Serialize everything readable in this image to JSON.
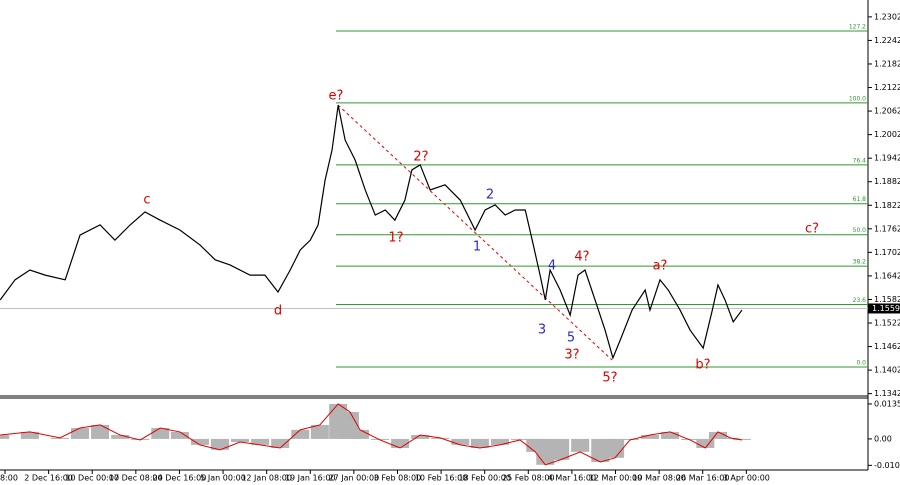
{
  "chart_data": [
    {
      "type": "line",
      "x": [
        -0.11,
        0.23,
        0.57,
        0.92,
        1.38,
        1.72,
        2.18,
        2.52,
        2.87,
        3.21,
        3.56,
        4.01,
        4.47,
        4.82,
        5.16,
        5.62,
        5.96,
        6.26,
        6.54,
        6.77,
        7.0,
        7.18,
        7.34,
        7.5,
        7.64,
        7.8,
        8.03,
        8.26,
        8.49,
        8.72,
        8.94,
        9.17,
        9.33,
        9.52,
        9.75,
        10.09,
        10.44,
        10.78,
        11.01,
        11.24,
        11.47,
        11.7,
        11.93,
        12.09,
        12.27,
        12.39,
        12.5,
        12.73,
        12.96,
        13.14,
        13.3,
        13.53,
        13.76,
        13.94,
        14.11,
        14.38,
        14.68,
        14.79,
        15.02,
        15.21,
        15.48,
        15.71,
        16.01,
        16.22,
        16.35,
        16.51,
        16.7,
        16.9
      ],
      "series": [
        {
          "color": "#000000",
          "values": [
            1.1581,
            1.1632,
            1.1657,
            1.1644,
            1.1632,
            1.1746,
            1.1772,
            1.1733,
            1.1772,
            1.1805,
            1.1784,
            1.1759,
            1.1721,
            1.1683,
            1.167,
            1.1644,
            1.1644,
            1.1601,
            1.1657,
            1.1708,
            1.1733,
            1.1772,
            1.1886,
            1.1963,
            1.2077,
            1.1988,
            1.1937,
            1.1861,
            1.1797,
            1.181,
            1.1784,
            1.1835,
            1.1912,
            1.1925,
            1.1861,
            1.1874,
            1.1835,
            1.1759,
            1.181,
            1.1823,
            1.1797,
            1.181,
            1.181,
            1.1733,
            1.1644,
            1.1581,
            1.1657,
            1.1606,
            1.1542,
            1.1644,
            1.1657,
            1.1581,
            1.1504,
            1.1433,
            1.1479,
            1.1555,
            1.1606,
            1.1555,
            1.1632,
            1.1606,
            1.1555,
            1.1504,
            1.1458,
            1.1555,
            1.1619,
            1.1581,
            1.1525,
            1.1555
          ]
        }
      ],
      "xlim": [
        -0.115,
        19.79
      ],
      "xticks": [
        {
          "value": 0,
          "label": "8:00"
        },
        {
          "value": 1,
          "label": "2 Dec 16:00"
        },
        {
          "value": 2,
          "label": "10 Dec 00:00"
        },
        {
          "value": 3,
          "label": "17 Dec 08:00"
        },
        {
          "value": 4,
          "label": "24 Dec 16:00"
        },
        {
          "value": 5,
          "label": "5 Jan 00:00"
        },
        {
          "value": 6,
          "label": "12 Jan 08:00"
        },
        {
          "value": 7,
          "label": "19 Jan 16:00"
        },
        {
          "value": 8,
          "label": "27 Jan 00:00"
        },
        {
          "value": 9,
          "label": "3 Feb 08:00"
        },
        {
          "value": 10,
          "label": "10 Feb 16:00"
        },
        {
          "value": 11,
          "label": "18 Feb 00:00"
        },
        {
          "value": 12,
          "label": "25 Feb 08:00"
        },
        {
          "value": 13,
          "label": "4 Mar 16:00"
        },
        {
          "value": 14,
          "label": "12 Mar 00:00"
        },
        {
          "value": 15,
          "label": "19 Mar 08:00"
        },
        {
          "value": 16,
          "label": "26 Mar 16:00"
        },
        {
          "value": 17,
          "label": "3 Apr 00:00"
        }
      ],
      "ylim": [
        1.1336,
        1.2345
      ],
      "yticks": [
        1.2302,
        1.2242,
        1.2182,
        1.2122,
        1.2062,
        1.2002,
        1.1942,
        1.1882,
        1.1822,
        1.1762,
        1.1702,
        1.1642,
        1.1582,
        1.1522,
        1.1462,
        1.1402,
        1.1342
      ],
      "fib_color": "#2e9a2e",
      "fib_levels": [
        {
          "label": "127.2",
          "value": 1.2266
        },
        {
          "label": "100.0",
          "value": 1.2083
        },
        {
          "label": "76.4",
          "value": 1.1925
        },
        {
          "label": "61.8",
          "value": 1.1826
        },
        {
          "label": "50.0",
          "value": 1.1747
        },
        {
          "label": "38.2",
          "value": 1.1667
        },
        {
          "label": "23.6",
          "value": 1.1569
        },
        {
          "label": "0.0",
          "value": 1.141
        }
      ],
      "current_price": 1.1559,
      "annotations": [
        {
          "text": "c",
          "color": "#e00000"
        },
        {
          "text": "d",
          "color": "#e00000"
        },
        {
          "text": "e?",
          "color": "#e00000"
        },
        {
          "text": "2?",
          "color": "#e00000"
        },
        {
          "text": "1?",
          "color": "#e00000"
        },
        {
          "text": "1",
          "color": "#2a2ad0"
        },
        {
          "text": "2",
          "color": "#2a2ad0"
        },
        {
          "text": "3",
          "color": "#2a2ad0"
        },
        {
          "text": "4",
          "color": "#2a2ad0"
        },
        {
          "text": "5",
          "color": "#2a2ad0"
        },
        {
          "text": "4?",
          "color": "#e00000"
        },
        {
          "text": "3?",
          "color": "#e00000"
        },
        {
          "text": "5?",
          "color": "#e00000"
        },
        {
          "text": "a?",
          "color": "#e00000"
        },
        {
          "text": "b?",
          "color": "#e00000"
        },
        {
          "text": "c?",
          "color": "#e00000"
        }
      ]
    },
    {
      "type": "area",
      "x": [
        -0.11,
        0.57,
        1.26,
        1.72,
        2.18,
        2.64,
        3.1,
        3.56,
        4.01,
        4.47,
        4.93,
        5.39,
        5.85,
        6.31,
        6.77,
        7.22,
        7.64,
        7.91,
        8.14,
        8.6,
        9.06,
        9.52,
        9.98,
        10.44,
        10.89,
        11.35,
        11.81,
        12.16,
        12.39,
        12.73,
        13.19,
        13.65,
        13.99,
        14.33,
        14.79,
        15.25,
        15.71,
        16.06,
        16.35,
        16.63,
        16.9
      ],
      "series": [
        {
          "color": "#b4b4b4",
          "line_color": "#e00000",
          "values": [
            0.0015,
            0.0027,
            0.0004,
            0.0042,
            0.0054,
            0.0015,
            -0.0004,
            0.0042,
            0.0027,
            -0.0023,
            -0.0042,
            -0.0012,
            -0.0023,
            -0.0035,
            0.0035,
            0.0054,
            0.0135,
            0.0104,
            0.0035,
            -0.0004,
            -0.0035,
            0.0015,
            0.0004,
            -0.0023,
            -0.0035,
            -0.0023,
            -0.0004,
            -0.005,
            -0.01,
            -0.0081,
            -0.005,
            -0.0089,
            -0.0073,
            -0.0004,
            0.0015,
            0.0027,
            -0.0004,
            -0.0035,
            0.0027,
            0.0004,
            -0.0004
          ]
        }
      ],
      "xlim": [
        -0.115,
        19.79
      ],
      "ylim": [
        -0.012,
        0.0158
      ],
      "yticks": [
        0.0135,
        {
          "value": 0,
          "label": "0.00"
        },
        -0.0102
      ]
    }
  ]
}
